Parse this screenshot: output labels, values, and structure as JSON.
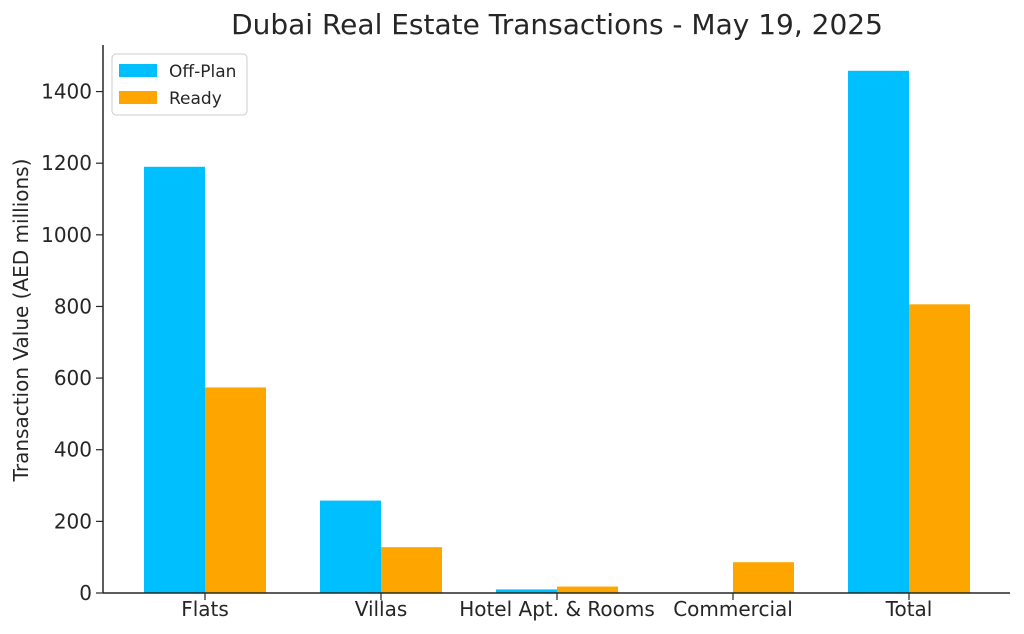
{
  "chart_data": {
    "type": "bar",
    "title": "Dubai Real Estate Transactions - May 19, 2025",
    "xlabel": "",
    "ylabel": "Transaction Value (AED millions)",
    "categories": [
      "Flats",
      "Villas",
      "Hotel Apt. & Rooms",
      "Commercial",
      "Total"
    ],
    "series": [
      {
        "name": "Off-Plan",
        "color": "#00BFFF",
        "values": [
          1190,
          258,
          10,
          0,
          1458
        ]
      },
      {
        "name": "Ready",
        "color": "#FFA500",
        "values": [
          574,
          128,
          18,
          86,
          806
        ]
      }
    ],
    "ylim": [
      0,
      1530
    ],
    "yticks": [
      0,
      200,
      400,
      600,
      800,
      1000,
      1200,
      1400
    ],
    "grid": false,
    "legend_position": "top-left"
  }
}
